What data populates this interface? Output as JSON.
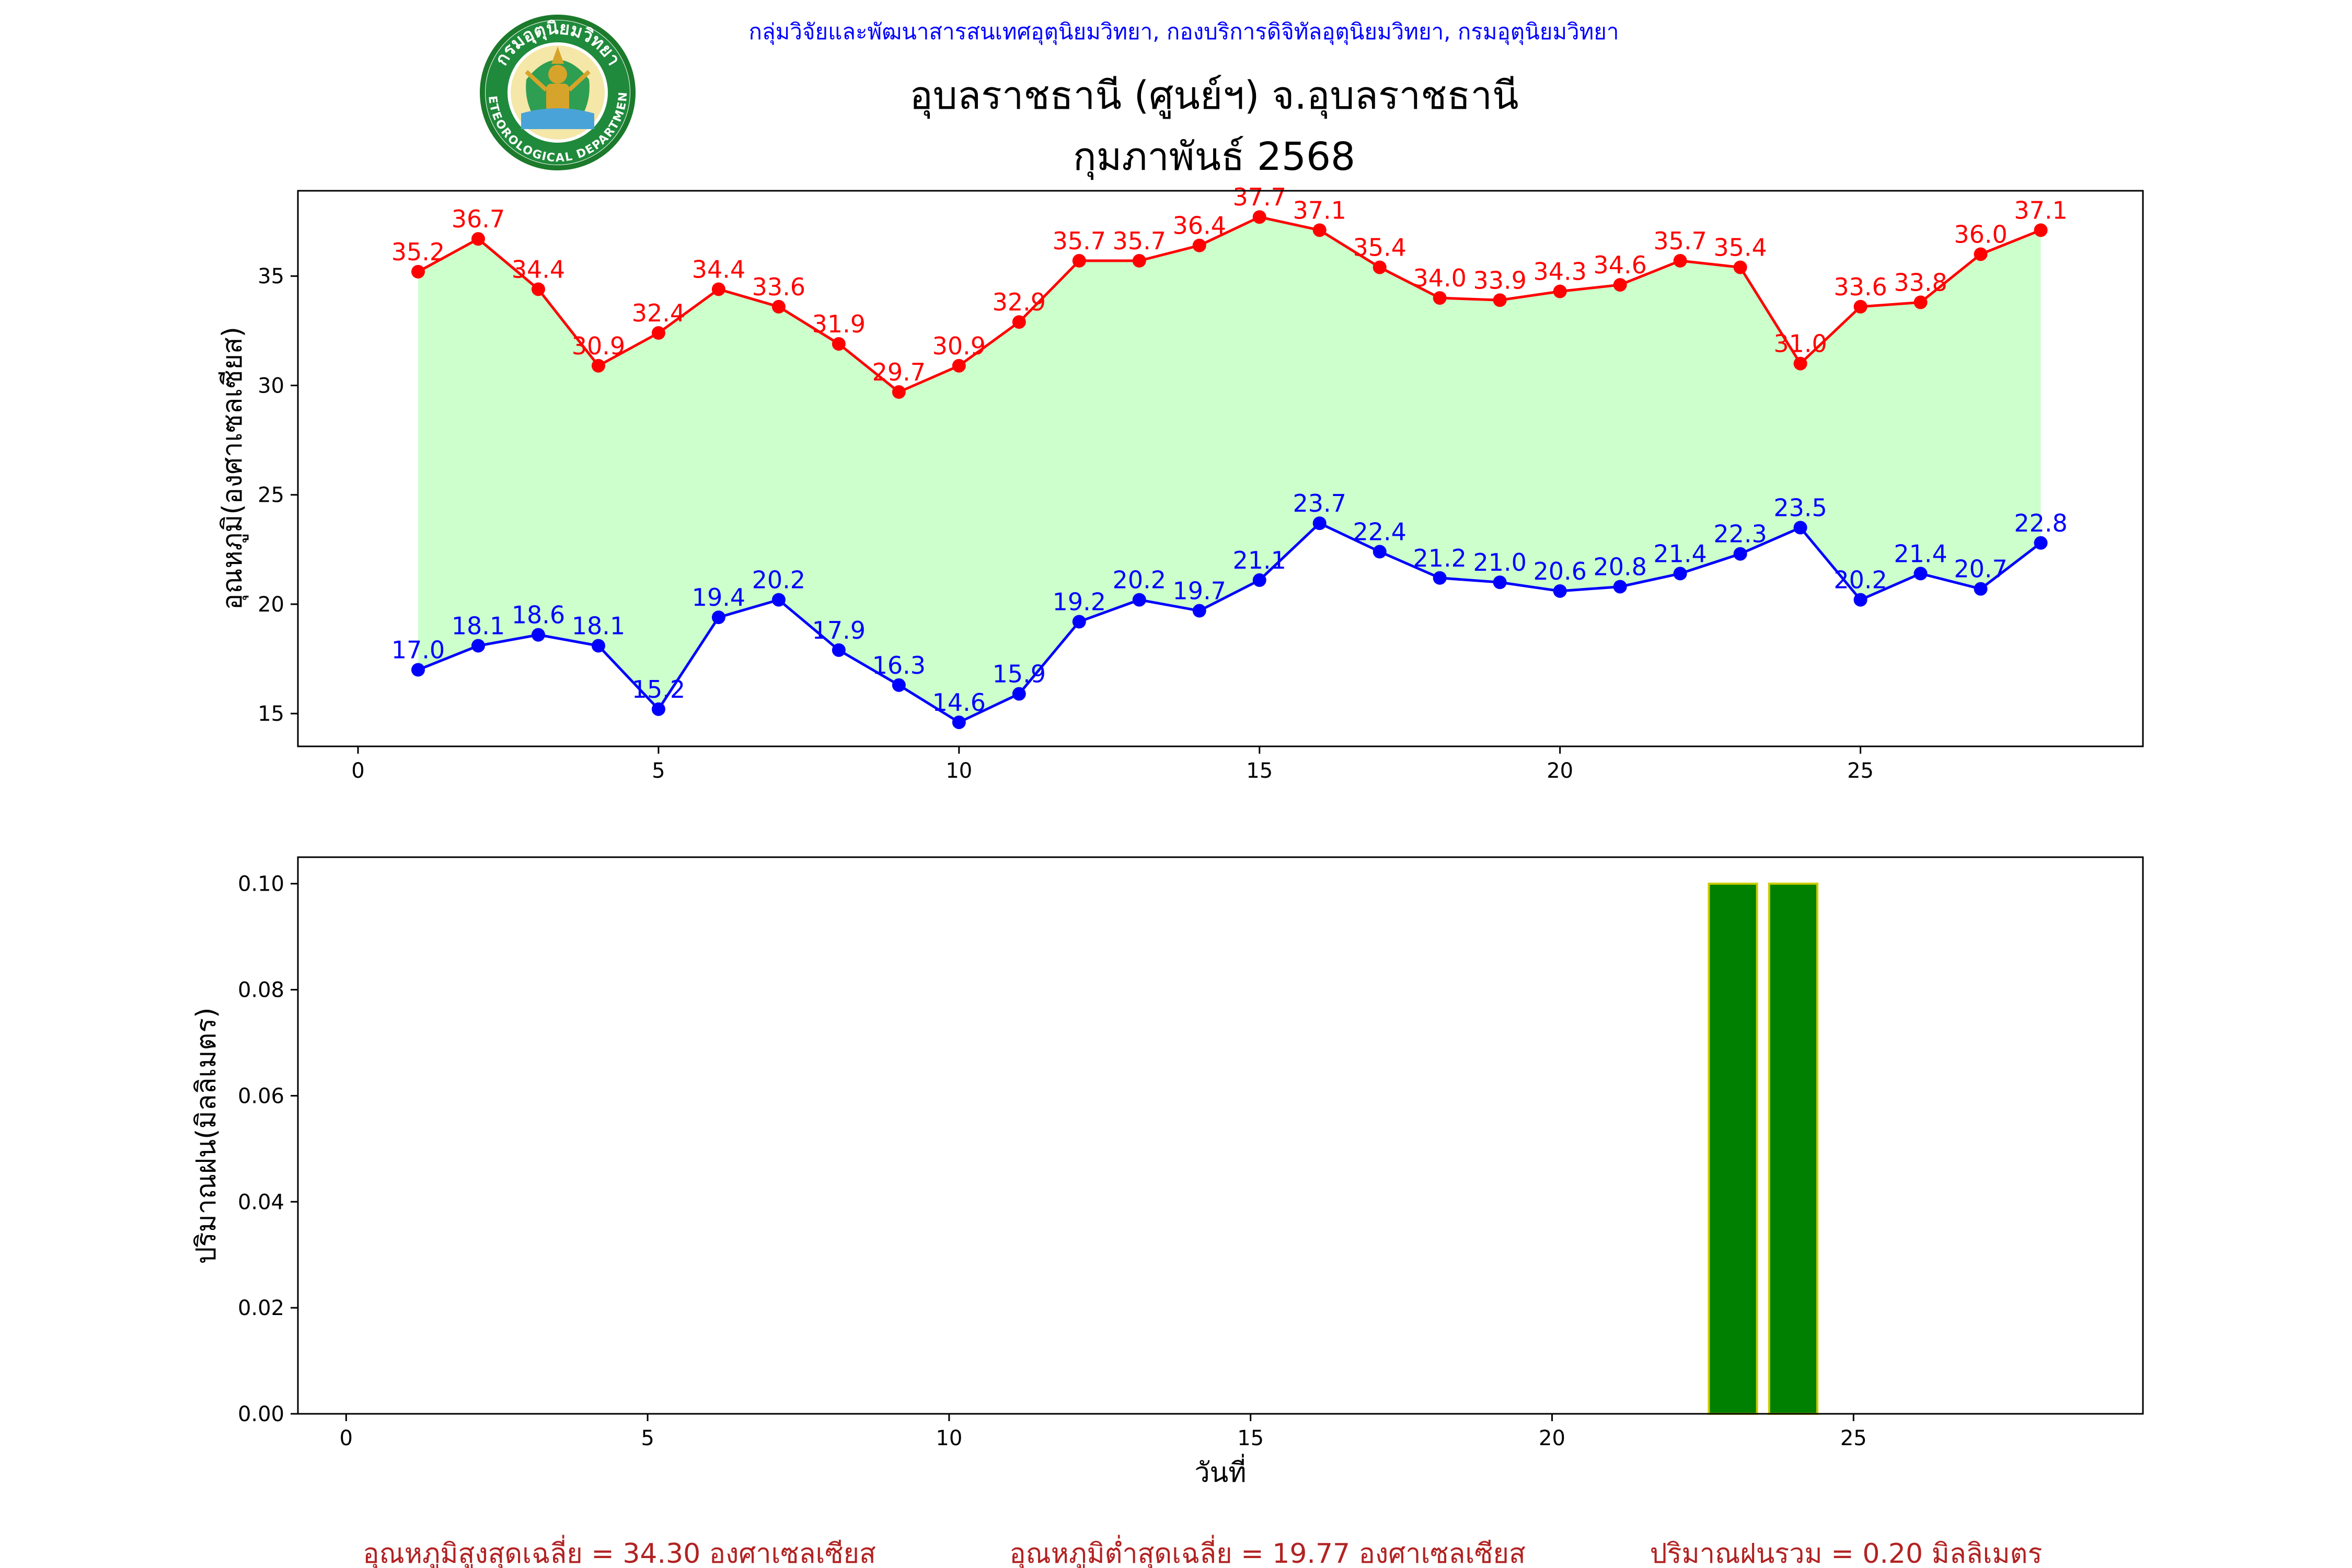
{
  "header": {
    "agency_line": "กลุ่มวิจัยและพัฒนาสารสนเทศอุตุนิยมวิทยา, กองบริการดิจิทัลอุตุนิยมวิทยา, กรมอุตุนิยมวิทยา",
    "station_title": "อุบลราชธานี (ศูนย์ฯ) จ.อุบลราชธานี",
    "period_title": "กุมภาพันธ์ 2568",
    "logo": {
      "top_text": "กรมอุตุนิยมวิทยา",
      "bottom_text": "METEOROLOGICAL DEPARTMENT",
      "icon": "meteorological-department-seal"
    }
  },
  "colors": {
    "tmax": "#ff0000",
    "tmin": "#0000ff",
    "band_fill": "#ccffcc",
    "rain_bar": "#008000",
    "rain_edge": "#cccc00",
    "header_text": "#0000ff",
    "summary_text": "#b22222"
  },
  "chart_data": [
    {
      "type": "line",
      "ylabel": "อุณหภูมิ(องศาเซลเซียส)",
      "xlim": [
        -1,
        29.7
      ],
      "ylim": [
        13.5,
        38.9
      ],
      "xticks": [
        0,
        5,
        10,
        15,
        20,
        25
      ],
      "yticks": [
        15,
        20,
        25,
        30,
        35
      ],
      "grid": false,
      "x": [
        1,
        2,
        3,
        4,
        5,
        6,
        7,
        8,
        9,
        10,
        11,
        12,
        13,
        14,
        15,
        16,
        17,
        18,
        19,
        20,
        21,
        22,
        23,
        24,
        25,
        26,
        27,
        28
      ],
      "series": [
        {
          "key": "tmax",
          "values": [
            35.2,
            36.7,
            34.4,
            30.9,
            32.4,
            34.4,
            33.6,
            31.9,
            29.7,
            30.9,
            32.9,
            35.7,
            35.7,
            36.4,
            37.7,
            37.1,
            35.4,
            34.0,
            33.9,
            34.3,
            34.6,
            35.7,
            35.4,
            31.0,
            33.6,
            33.8,
            36.0,
            37.1
          ],
          "labels": [
            "35.2",
            "36.7",
            "34.4",
            "30.9",
            "32.4",
            "34.4",
            "33.6",
            "31.9",
            "29.7",
            "30.9",
            "32.9",
            "35.7",
            "35.7",
            "36.4",
            "37.7",
            "37.1",
            "35.4",
            "34.0",
            "33.9",
            "34.3",
            "34.6",
            "35.7",
            "35.4",
            "31.0",
            "33.6",
            "33.8",
            "36.0",
            "37.1"
          ]
        },
        {
          "key": "tmin",
          "values": [
            17.0,
            18.1,
            18.6,
            18.1,
            15.2,
            19.4,
            20.2,
            17.9,
            16.3,
            14.6,
            15.9,
            19.2,
            20.2,
            19.7,
            21.1,
            23.7,
            22.4,
            21.2,
            21.0,
            20.6,
            20.8,
            21.4,
            22.3,
            23.5,
            20.2,
            21.4,
            20.7,
            22.8
          ],
          "labels": [
            "17.0",
            "18.1",
            "18.6",
            "18.1",
            "15.2",
            "19.4",
            "20.2",
            "17.9",
            "16.3",
            "14.6",
            "15.9",
            "19.2",
            "20.2",
            "19.7",
            "21.1",
            "23.7",
            "22.4",
            "21.2",
            "21.0",
            "20.6",
            "20.8",
            "21.4",
            "22.3",
            "23.5",
            "20.2",
            "21.4",
            "20.7",
            "22.8"
          ]
        }
      ]
    },
    {
      "type": "bar",
      "ylabel": "ปริมาณฝน(มิลลิเมตร)",
      "xlabel": "วันที่",
      "xlim": [
        -0.8,
        29.8
      ],
      "ylim": [
        0,
        0.105
      ],
      "xticks": [
        0,
        5,
        10,
        15,
        20,
        25
      ],
      "yticks": [
        "0.00",
        "0.02",
        "0.04",
        "0.06",
        "0.08",
        "0.10"
      ],
      "grid": false,
      "x": [
        1,
        2,
        3,
        4,
        5,
        6,
        7,
        8,
        9,
        10,
        11,
        12,
        13,
        14,
        15,
        16,
        17,
        18,
        19,
        20,
        21,
        22,
        23,
        24,
        25,
        26,
        27,
        28
      ],
      "values": [
        0,
        0,
        0,
        0,
        0,
        0,
        0,
        0,
        0,
        0,
        0,
        0,
        0,
        0,
        0,
        0,
        0,
        0,
        0,
        0,
        0,
        0,
        0.1,
        0.1,
        0,
        0,
        0,
        0
      ]
    }
  ],
  "summary": {
    "avg_max": "อุณหภูมิสูงสุดเฉลี่ย = 34.30 องศาเซลเซียส",
    "avg_min": "อุณหภูมิต่ำสุดเฉลี่ย = 19.77 องศาเซลเซียส",
    "total_rain": "ปริมาณฝนรวม = 0.20 มิลลิเมตร"
  }
}
